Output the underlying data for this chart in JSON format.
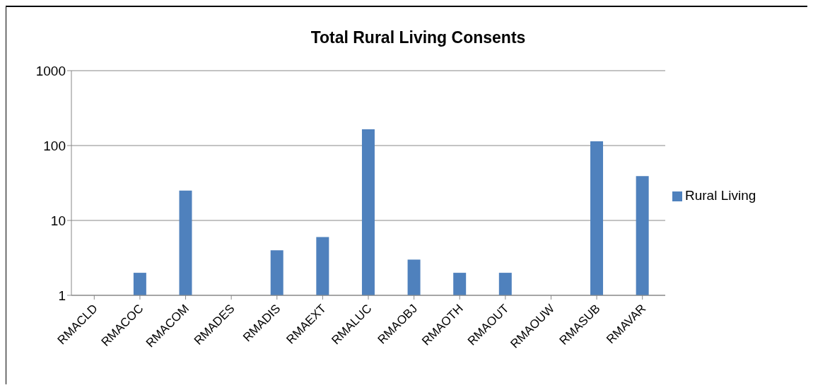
{
  "chart_data": {
    "type": "bar",
    "title": "Total Rural Living Consents",
    "categories": [
      "RMACLD",
      "RMACOC",
      "RMACOM",
      "RMADES",
      "RMADIS",
      "RMAEXT",
      "RMALUC",
      "RMAOBJ",
      "RMAOTH",
      "RMAOUT",
      "RMAOUW",
      "RMASUB",
      "RMAVAR"
    ],
    "series": [
      {
        "name": "Rural Living",
        "color": "#4f81bd",
        "values": [
          null,
          2,
          25,
          null,
          4,
          6,
          165,
          3,
          2,
          2,
          null,
          114,
          39
        ]
      }
    ],
    "log": "y",
    "ylim": [
      1,
      1000
    ],
    "yticks": [
      1,
      10,
      100,
      1000
    ],
    "grid": "y",
    "legend": "right"
  }
}
